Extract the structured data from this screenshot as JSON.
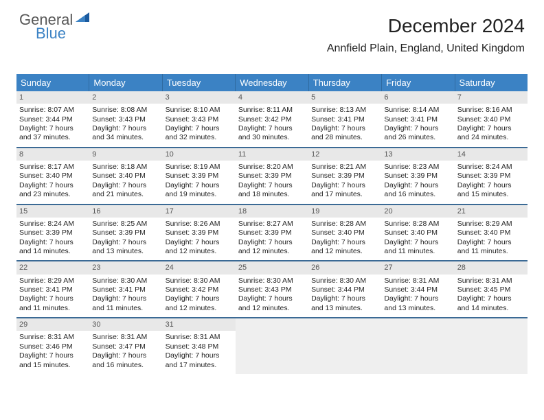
{
  "brand": {
    "part1": "General",
    "part2": "Blue"
  },
  "header": {
    "monthYear": "December 2024",
    "location": "Annfield Plain, England, United Kingdom"
  },
  "colors": {
    "headerBlue": "#3b82c4",
    "rowBorder": "#3b6a95",
    "dayHeaderBg": "#e8e8e8",
    "blankBg": "#efefef",
    "text": "#222222"
  },
  "weekdays": [
    "Sunday",
    "Monday",
    "Tuesday",
    "Wednesday",
    "Thursday",
    "Friday",
    "Saturday"
  ],
  "days": [
    {
      "n": "1",
      "sr": "8:07 AM",
      "ss": "3:44 PM",
      "dl": "7 hours and 37 minutes."
    },
    {
      "n": "2",
      "sr": "8:08 AM",
      "ss": "3:43 PM",
      "dl": "7 hours and 34 minutes."
    },
    {
      "n": "3",
      "sr": "8:10 AM",
      "ss": "3:43 PM",
      "dl": "7 hours and 32 minutes."
    },
    {
      "n": "4",
      "sr": "8:11 AM",
      "ss": "3:42 PM",
      "dl": "7 hours and 30 minutes."
    },
    {
      "n": "5",
      "sr": "8:13 AM",
      "ss": "3:41 PM",
      "dl": "7 hours and 28 minutes."
    },
    {
      "n": "6",
      "sr": "8:14 AM",
      "ss": "3:41 PM",
      "dl": "7 hours and 26 minutes."
    },
    {
      "n": "7",
      "sr": "8:16 AM",
      "ss": "3:40 PM",
      "dl": "7 hours and 24 minutes."
    },
    {
      "n": "8",
      "sr": "8:17 AM",
      "ss": "3:40 PM",
      "dl": "7 hours and 23 minutes."
    },
    {
      "n": "9",
      "sr": "8:18 AM",
      "ss": "3:40 PM",
      "dl": "7 hours and 21 minutes."
    },
    {
      "n": "10",
      "sr": "8:19 AM",
      "ss": "3:39 PM",
      "dl": "7 hours and 19 minutes."
    },
    {
      "n": "11",
      "sr": "8:20 AM",
      "ss": "3:39 PM",
      "dl": "7 hours and 18 minutes."
    },
    {
      "n": "12",
      "sr": "8:21 AM",
      "ss": "3:39 PM",
      "dl": "7 hours and 17 minutes."
    },
    {
      "n": "13",
      "sr": "8:23 AM",
      "ss": "3:39 PM",
      "dl": "7 hours and 16 minutes."
    },
    {
      "n": "14",
      "sr": "8:24 AM",
      "ss": "3:39 PM",
      "dl": "7 hours and 15 minutes."
    },
    {
      "n": "15",
      "sr": "8:24 AM",
      "ss": "3:39 PM",
      "dl": "7 hours and 14 minutes."
    },
    {
      "n": "16",
      "sr": "8:25 AM",
      "ss": "3:39 PM",
      "dl": "7 hours and 13 minutes."
    },
    {
      "n": "17",
      "sr": "8:26 AM",
      "ss": "3:39 PM",
      "dl": "7 hours and 12 minutes."
    },
    {
      "n": "18",
      "sr": "8:27 AM",
      "ss": "3:39 PM",
      "dl": "7 hours and 12 minutes."
    },
    {
      "n": "19",
      "sr": "8:28 AM",
      "ss": "3:40 PM",
      "dl": "7 hours and 12 minutes."
    },
    {
      "n": "20",
      "sr": "8:28 AM",
      "ss": "3:40 PM",
      "dl": "7 hours and 11 minutes."
    },
    {
      "n": "21",
      "sr": "8:29 AM",
      "ss": "3:40 PM",
      "dl": "7 hours and 11 minutes."
    },
    {
      "n": "22",
      "sr": "8:29 AM",
      "ss": "3:41 PM",
      "dl": "7 hours and 11 minutes."
    },
    {
      "n": "23",
      "sr": "8:30 AM",
      "ss": "3:41 PM",
      "dl": "7 hours and 11 minutes."
    },
    {
      "n": "24",
      "sr": "8:30 AM",
      "ss": "3:42 PM",
      "dl": "7 hours and 12 minutes."
    },
    {
      "n": "25",
      "sr": "8:30 AM",
      "ss": "3:43 PM",
      "dl": "7 hours and 12 minutes."
    },
    {
      "n": "26",
      "sr": "8:30 AM",
      "ss": "3:44 PM",
      "dl": "7 hours and 13 minutes."
    },
    {
      "n": "27",
      "sr": "8:31 AM",
      "ss": "3:44 PM",
      "dl": "7 hours and 13 minutes."
    },
    {
      "n": "28",
      "sr": "8:31 AM",
      "ss": "3:45 PM",
      "dl": "7 hours and 14 minutes."
    },
    {
      "n": "29",
      "sr": "8:31 AM",
      "ss": "3:46 PM",
      "dl": "7 hours and 15 minutes."
    },
    {
      "n": "30",
      "sr": "8:31 AM",
      "ss": "3:47 PM",
      "dl": "7 hours and 16 minutes."
    },
    {
      "n": "31",
      "sr": "8:31 AM",
      "ss": "3:48 PM",
      "dl": "7 hours and 17 minutes."
    }
  ],
  "labels": {
    "sunrise": "Sunrise: ",
    "sunset": "Sunset: ",
    "daylight": "Daylight: "
  },
  "layout": {
    "startWeekday": 0,
    "weeks": 5,
    "blanksAfter": 4
  }
}
